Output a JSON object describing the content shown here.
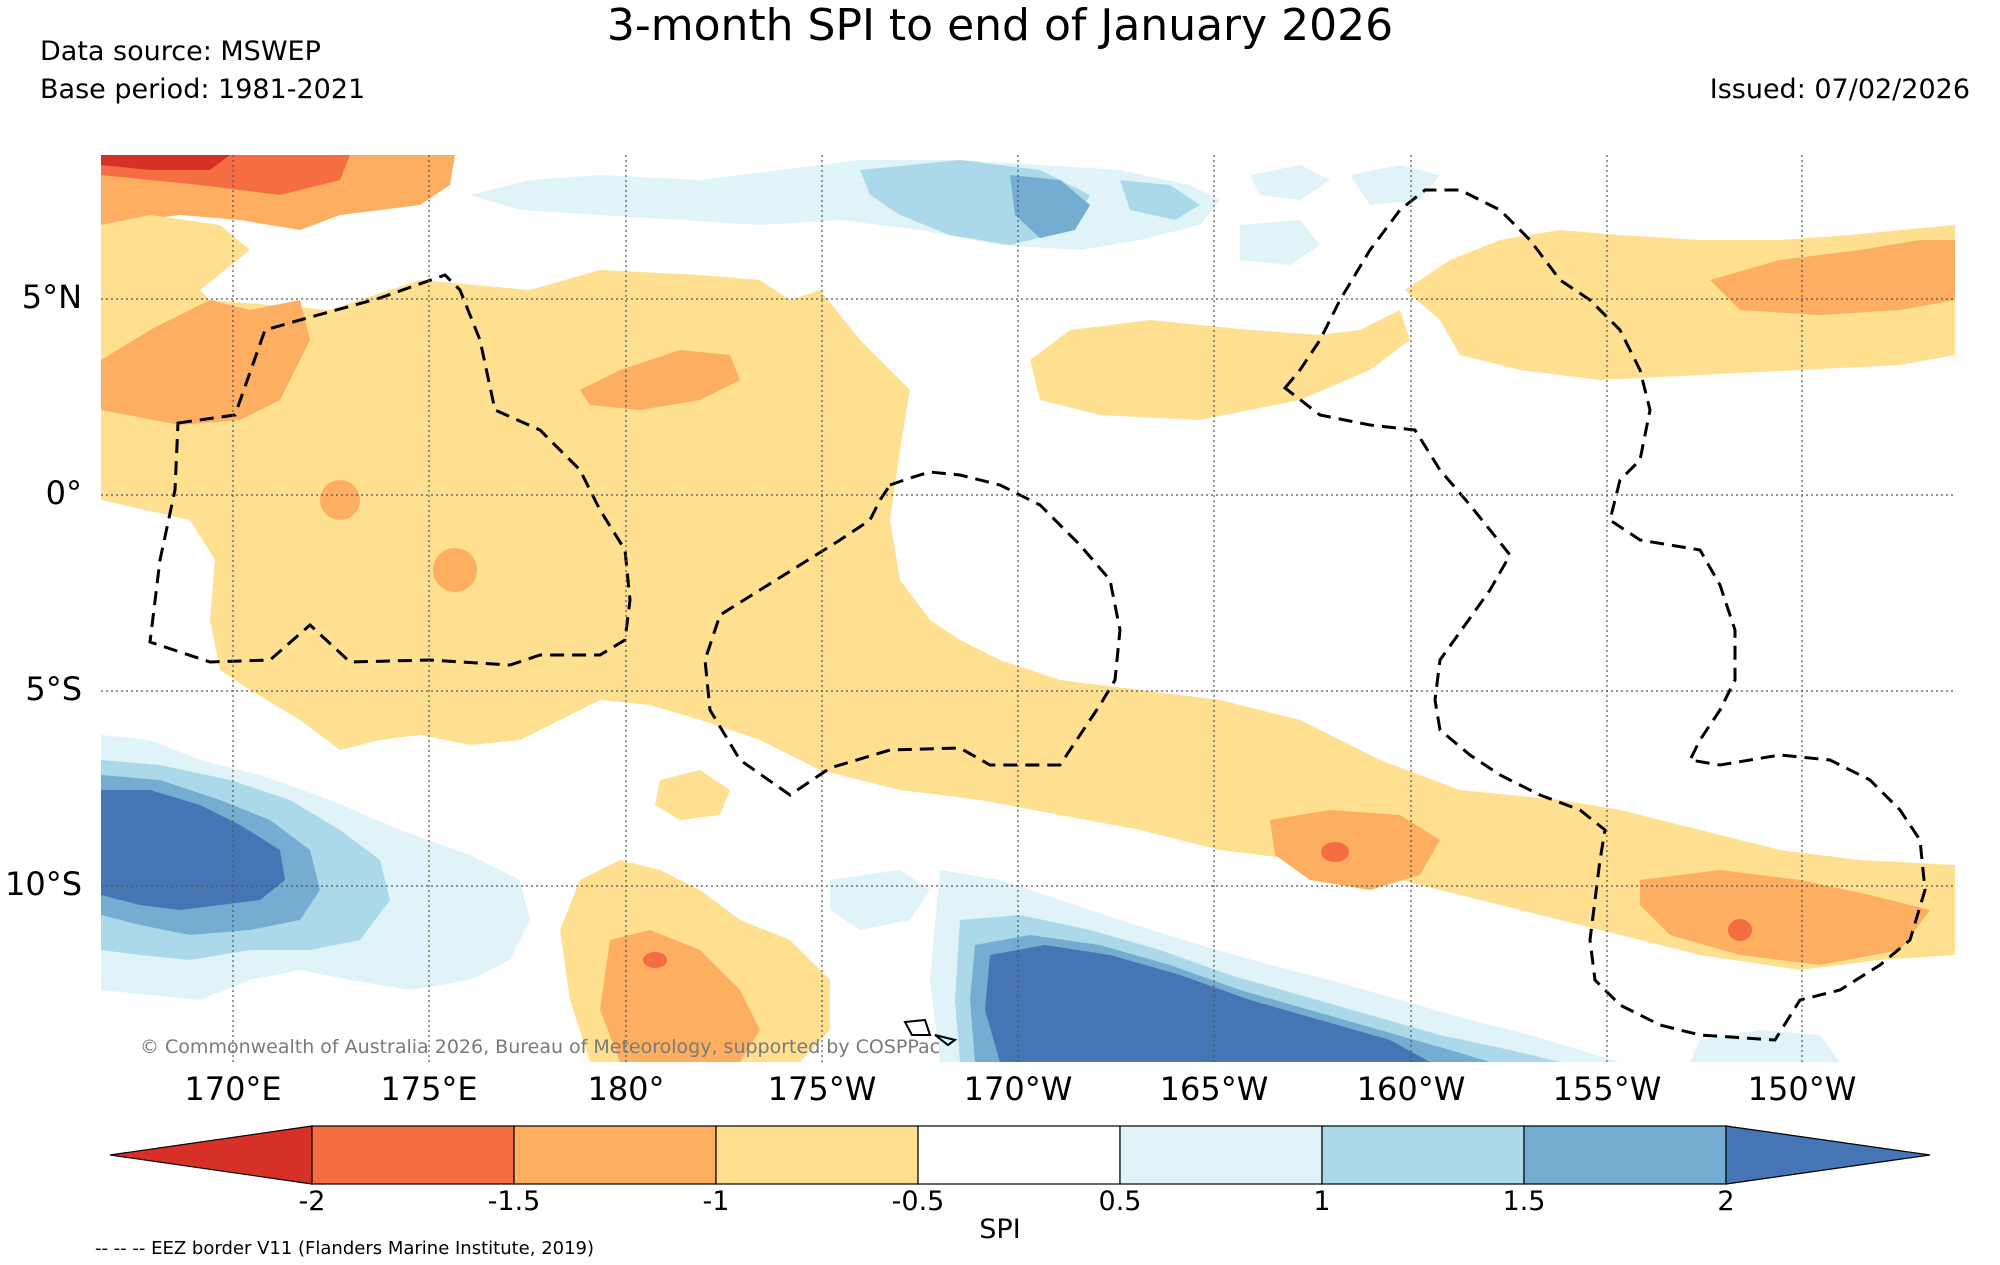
{
  "title": "3-month SPI to end of January 2026",
  "data_source": "Data source: MSWEP",
  "base_period": "Base period: 1981-2021",
  "issued": "Issued: 07/02/2026",
  "lat_labels": [
    "5°N",
    "0°",
    "5°S",
    "10°S"
  ],
  "lon_labels": [
    "170°E",
    "175°E",
    "180°",
    "175°W",
    "170°W",
    "165°W",
    "160°W",
    "155°W",
    "150°W"
  ],
  "copyright": "© Commonwealth of Australia 2026, Bureau of Meteorology, supported by COSPPac",
  "colorbar": {
    "label": "SPI",
    "ticks": [
      "-2",
      "-1.5",
      "-1",
      "-0.5",
      "0.5",
      "1",
      "1.5",
      "2"
    ],
    "colors": {
      "below_minus_2": "#d73027",
      "minus_2_to_minus_1_5": "#f46d43",
      "minus_1_5_to_minus_1": "#fdae61",
      "minus_1_to_minus_0_5": "#fee090",
      "minus_0_5_to_0_5": "#ffffff",
      "0_5_to_1": "#e0f3f8",
      "1_to_1_5": "#abd9e9",
      "1_5_to_2": "#74add1",
      "above_2": "#4575b4"
    }
  },
  "legend_note": "-- -- -- EEZ border V11 (Flanders Marine Institute, 2019)"
}
